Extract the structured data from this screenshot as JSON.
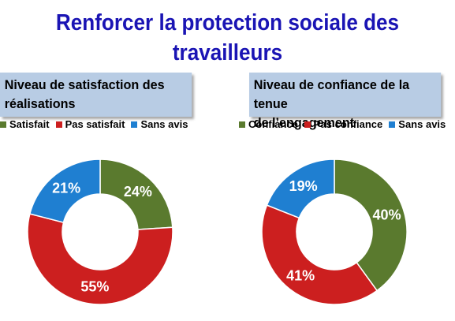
{
  "title_line1": "Renforcer la protection sociale des",
  "title_line2": "travailleurs",
  "chart_data": [
    {
      "type": "pie",
      "title_line1": "Niveau de satisfaction des",
      "title_line2": "réalisations",
      "categories": [
        "Satisfait",
        "Pas satisfait",
        "Sans avis"
      ],
      "values": [
        24,
        55,
        21
      ],
      "labels": [
        "24%",
        "55%",
        "21%"
      ],
      "colors": [
        "#5a7a2e",
        "#cc1f1f",
        "#1f7fd1"
      ],
      "legend": "top"
    },
    {
      "type": "pie",
      "title_line1": "Niveau de confiance de la tenue",
      "title_line2": "de l’engagement",
      "categories": [
        "Confiance",
        "Pas confiance",
        "Sans avis"
      ],
      "values": [
        40,
        41,
        19
      ],
      "labels": [
        "40%",
        "41%",
        "19%"
      ],
      "colors": [
        "#5a7a2e",
        "#cc1f1f",
        "#1f7fd1"
      ],
      "legend": "top"
    }
  ]
}
